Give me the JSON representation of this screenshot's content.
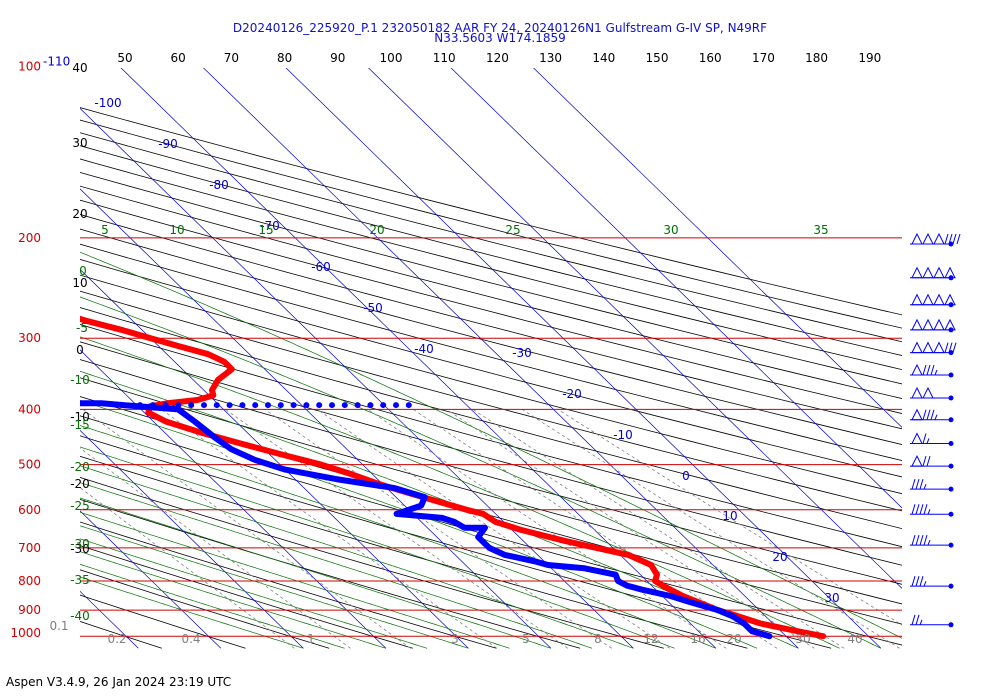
{
  "header": {
    "line1": "D20240126_225920_P.1 232050182 AAR FY 24, 20240126N1 Gulfstream G-IV SP, N49RF",
    "line2": "N33.5603 W174.1859"
  },
  "footer": "Aspen V3.4.9, 26 Jan 2024  23:19 UTC",
  "colors": {
    "isobar": "#d00000",
    "isotherm": "#0000d0",
    "dry_adiabat": "#000000",
    "moist_adiabat": "#007000",
    "mixing_ratio": "#808080",
    "temperature": "#ff0000",
    "dewpoint": "#0000ff",
    "wind_barb": "#0000ff"
  },
  "chart_data": {
    "type": "skew-t",
    "pressure_levels": [
      "100",
      "200",
      "300",
      "400",
      "500",
      "600",
      "700",
      "800",
      "900",
      "1000"
    ],
    "top_pressure_label": "-110",
    "top_labels": [
      "50",
      "60",
      "70",
      "80",
      "90",
      "100",
      "110",
      "120",
      "130",
      "140",
      "150",
      "160",
      "170",
      "180",
      "190"
    ],
    "isotherm_labels": [
      "-100",
      "-90",
      "-80",
      "-70",
      "-60",
      "-50",
      "-40",
      "-30",
      "-20",
      "-10",
      "0",
      "10",
      "20",
      "30"
    ],
    "dry_adiabat_labels": [
      "40",
      "30",
      "20",
      "10",
      "0",
      "-10",
      "-20",
      "-30"
    ],
    "moist_adiabat_labels": [
      "5",
      "10",
      "15",
      "20",
      "25",
      "30",
      "35"
    ],
    "moist_left_labels": [
      "0",
      "-5",
      "-10",
      "-15",
      "-20",
      "-25",
      "-30",
      "-35",
      "-40"
    ],
    "mixing_ratio_labels": [
      "0.1",
      "0.2",
      "0.4",
      "1",
      "3",
      "5",
      "8",
      "12",
      "16",
      "20",
      "30",
      "40"
    ],
    "temperature_profile": [
      {
        "p": 1000,
        "t": 24.5
      },
      {
        "p": 980,
        "t": 22.0
      },
      {
        "p": 950,
        "t": 18.5
      },
      {
        "p": 920,
        "t": 16.5
      },
      {
        "p": 900,
        "t": 15.0
      },
      {
        "p": 870,
        "t": 13.5
      },
      {
        "p": 850,
        "t": 12.5
      },
      {
        "p": 820,
        "t": 11.5
      },
      {
        "p": 800,
        "t": 11.0
      },
      {
        "p": 780,
        "t": 12.0
      },
      {
        "p": 750,
        "t": 12.5
      },
      {
        "p": 720,
        "t": 11.0
      },
      {
        "p": 700,
        "t": 8.0
      },
      {
        "p": 680,
        "t": 5.0
      },
      {
        "p": 650,
        "t": 1.0
      },
      {
        "p": 630,
        "t": -1.0
      },
      {
        "p": 610,
        "t": -1.5
      },
      {
        "p": 600,
        "t": -3.0
      },
      {
        "p": 580,
        "t": -5.5
      },
      {
        "p": 560,
        "t": -8.0
      },
      {
        "p": 540,
        "t": -10.5
      },
      {
        "p": 520,
        "t": -12.5
      },
      {
        "p": 500,
        "t": -15.0
      },
      {
        "p": 480,
        "t": -18.5
      },
      {
        "p": 460,
        "t": -22.0
      },
      {
        "p": 440,
        "t": -25.5
      },
      {
        "p": 420,
        "t": -28.5
      },
      {
        "p": 405,
        "t": -29.5
      },
      {
        "p": 395,
        "t": -28.5
      },
      {
        "p": 390,
        "t": -26.0
      },
      {
        "p": 385,
        "t": -22.0
      },
      {
        "p": 378,
        "t": -19.5
      },
      {
        "p": 370,
        "t": -19.0
      },
      {
        "p": 355,
        "t": -17.0
      },
      {
        "p": 340,
        "t": -14.0
      },
      {
        "p": 330,
        "t": -14.0
      },
      {
        "p": 320,
        "t": -15.0
      },
      {
        "p": 310,
        "t": -17.5
      },
      {
        "p": 300,
        "t": -20.0
      },
      {
        "p": 290,
        "t": -22.5
      },
      {
        "p": 280,
        "t": -25.5
      },
      {
        "p": 270,
        "t": -28.0
      },
      {
        "p": 260,
        "t": -30.5
      },
      {
        "p": 250,
        "t": -33.5
      },
      {
        "p": 240,
        "t": -37.0
      },
      {
        "p": 230,
        "t": -41.0
      },
      {
        "p": 220,
        "t": -45.5
      },
      {
        "p": 210,
        "t": -50.0
      },
      {
        "p": 200,
        "t": -53.5
      },
      {
        "p": 190,
        "t": -56.0
      },
      {
        "p": 182,
        "t": -57.5
      }
    ],
    "dewpoint_profile": [
      {
        "p": 1000,
        "t": 18.0
      },
      {
        "p": 980,
        "t": 16.5
      },
      {
        "p": 950,
        "t": 16.5
      },
      {
        "p": 920,
        "t": 16.0
      },
      {
        "p": 900,
        "t": 15.0
      },
      {
        "p": 870,
        "t": 12.5
      },
      {
        "p": 850,
        "t": 11.0
      },
      {
        "p": 830,
        "t": 8.5
      },
      {
        "p": 815,
        "t": 7.0
      },
      {
        "p": 800,
        "t": 6.5
      },
      {
        "p": 780,
        "t": 7.0
      },
      {
        "p": 760,
        "t": 4.0
      },
      {
        "p": 750,
        "t": 0.0
      },
      {
        "p": 740,
        "t": -1.0
      },
      {
        "p": 720,
        "t": -4.0
      },
      {
        "p": 700,
        "t": -5.0
      },
      {
        "p": 670,
        "t": -5.0
      },
      {
        "p": 645,
        "t": -3.0
      },
      {
        "p": 645,
        "t": -5.5
      },
      {
        "p": 630,
        "t": -6.0
      },
      {
        "p": 620,
        "t": -7.0
      },
      {
        "p": 610,
        "t": -12.0
      },
      {
        "p": 590,
        "t": -8.0
      },
      {
        "p": 570,
        "t": -6.5
      },
      {
        "p": 550,
        "t": -9.0
      },
      {
        "p": 530,
        "t": -15.0
      },
      {
        "p": 510,
        "t": -20.0
      },
      {
        "p": 490,
        "t": -22.5
      },
      {
        "p": 470,
        "t": -24.0
      },
      {
        "p": 450,
        "t": -24.5
      },
      {
        "p": 420,
        "t": -25.0
      },
      {
        "p": 400,
        "t": -25.5
      },
      {
        "p": 395,
        "t": -30.0
      },
      {
        "p": 390,
        "t": -34.0
      },
      {
        "p": 390,
        "t": -40.0
      },
      {
        "p": 390,
        "t": -47.0
      },
      {
        "p": 390,
        "t": -55.0
      },
      {
        "p": 390,
        "t": -63.0
      },
      {
        "p": 390,
        "t": -70.0
      },
      {
        "p": 385,
        "t": -75.0
      },
      {
        "p": 375,
        "t": -75.0
      },
      {
        "p": 360,
        "t": -73.0
      },
      {
        "p": 350,
        "t": -71.0
      },
      {
        "p": 330,
        "t": -66.0
      },
      {
        "p": 310,
        "t": -65.0
      },
      {
        "p": 290,
        "t": -68.0
      },
      {
        "p": 270,
        "t": -70.0
      },
      {
        "p": 250,
        "t": -73.5
      },
      {
        "p": 235,
        "t": -76.0
      }
    ],
    "wind_profile": [
      {
        "p": 205,
        "half": 0,
        "full": 4,
        "flag": 3
      },
      {
        "p": 235,
        "half": 0,
        "full": 0,
        "flag": 4
      },
      {
        "p": 262,
        "half": 0,
        "full": 0,
        "flag": 4
      },
      {
        "p": 290,
        "half": 0,
        "full": 0,
        "flag": 4
      },
      {
        "p": 318,
        "half": 0,
        "full": 3,
        "flag": 3
      },
      {
        "p": 348,
        "half": 1,
        "full": 3,
        "flag": 1
      },
      {
        "p": 382,
        "half": 0,
        "full": 0,
        "flag": 2
      },
      {
        "p": 417,
        "half": 1,
        "full": 3,
        "flag": 1
      },
      {
        "p": 459,
        "half": 1,
        "full": 1,
        "flag": 1
      },
      {
        "p": 503,
        "half": 0,
        "full": 2,
        "flag": 1
      },
      {
        "p": 552,
        "half": 1,
        "full": 3,
        "flag": 0
      },
      {
        "p": 611,
        "half": 1,
        "full": 4,
        "flag": 0
      },
      {
        "p": 692,
        "half": 1,
        "full": 4,
        "flag": 0
      },
      {
        "p": 817,
        "half": 1,
        "full": 3,
        "flag": 0
      },
      {
        "p": 955,
        "half": 1,
        "full": 2,
        "flag": 0
      }
    ]
  }
}
